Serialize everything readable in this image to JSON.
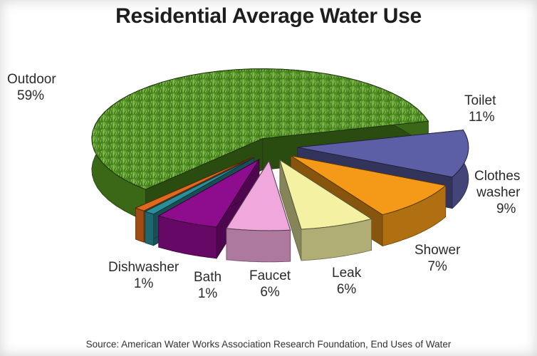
{
  "chart_data": {
    "type": "pie",
    "title": "Residential Average Water Use",
    "source": "Source: American Water Works Association Research Foundation, End Uses of Water",
    "slices": [
      {
        "name": "Outdoor",
        "value": 59,
        "label": "59%",
        "color": "#4f8a1f",
        "texture": "grass"
      },
      {
        "name": "Toilet",
        "value": 11,
        "label": "11%",
        "color": "#5d5fa6"
      },
      {
        "name": "Clothes washer",
        "value": 9,
        "label": "9%",
        "color": "#f59a18"
      },
      {
        "name": "Shower",
        "value": 7,
        "label": "7%",
        "color": "#f4f2a2"
      },
      {
        "name": "Leak",
        "value": 6,
        "label": "6%",
        "color": "#f0a8dc"
      },
      {
        "name": "Faucet",
        "value": 6,
        "label": "6%",
        "color": "#8e0c8e"
      },
      {
        "name": "Bath",
        "value": 1,
        "label": "1%",
        "color": "#2a8f9a"
      },
      {
        "name": "Dishwasher",
        "value": 1,
        "label": "1%",
        "color": "#e06a1c"
      }
    ],
    "labels": [
      {
        "line1": "Outdoor",
        "line2": "59%"
      },
      {
        "line1": "Toilet",
        "line2": "11%"
      },
      {
        "line1": "Clothes",
        "line2": "washer",
        "line3": "9%"
      },
      {
        "line1": "Shower",
        "line2": "7%"
      },
      {
        "line1": "Leak",
        "line2": "6%"
      },
      {
        "line1": "Faucet",
        "line2": "6%"
      },
      {
        "line1": "Bath",
        "line2": "1%"
      },
      {
        "line1": "Dishwasher",
        "line2": "1%"
      }
    ]
  }
}
